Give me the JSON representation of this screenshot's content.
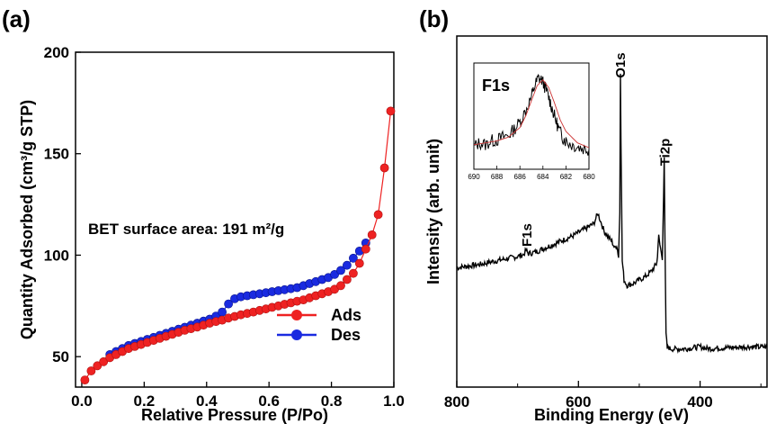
{
  "panels": {
    "a": {
      "label": "(a)"
    },
    "b": {
      "label": "(b)"
    }
  },
  "chart_data": [
    {
      "panel": "a",
      "type": "scatter",
      "xlabel": "Relative Pressure (P/Po)",
      "ylabel": "Quantity Adsorbed (cm³/g STP)",
      "xlim": [
        -0.02,
        1.0
      ],
      "ylim": [
        35,
        200
      ],
      "xticks": [
        0.0,
        0.2,
        0.4,
        0.6,
        0.8,
        1.0
      ],
      "xtick_labels": [
        "0.0",
        "0.2",
        "0.4",
        "0.6",
        "0.8",
        "1.0"
      ],
      "yticks": [
        50,
        100,
        150,
        200
      ],
      "ytick_labels": [
        "50",
        "100",
        "150",
        "200"
      ],
      "annotation": "BET surface area: 191 m²/g",
      "legend_position": "bottom-right",
      "series": [
        {
          "name": "Ads",
          "color": "#ee2222",
          "x": [
            0.01,
            0.03,
            0.05,
            0.07,
            0.09,
            0.11,
            0.13,
            0.15,
            0.17,
            0.19,
            0.21,
            0.23,
            0.25,
            0.27,
            0.29,
            0.31,
            0.33,
            0.35,
            0.37,
            0.39,
            0.41,
            0.43,
            0.45,
            0.47,
            0.49,
            0.51,
            0.53,
            0.55,
            0.57,
            0.59,
            0.61,
            0.63,
            0.65,
            0.67,
            0.69,
            0.71,
            0.73,
            0.75,
            0.77,
            0.79,
            0.81,
            0.83,
            0.85,
            0.87,
            0.89,
            0.91,
            0.93,
            0.95,
            0.97,
            0.99
          ],
          "y": [
            38.5,
            43.0,
            45.5,
            47.5,
            49.5,
            51.0,
            52.5,
            54.0,
            55.0,
            56.0,
            57.0,
            58.0,
            59.0,
            60.0,
            61.0,
            62.0,
            63.0,
            63.8,
            64.6,
            65.5,
            66.5,
            67.3,
            68.0,
            69.0,
            69.8,
            70.6,
            71.3,
            72.0,
            72.8,
            73.5,
            74.3,
            75.0,
            75.8,
            76.5,
            77.3,
            78.0,
            79.0,
            80.0,
            81.0,
            82.0,
            83.2,
            85.0,
            88.0,
            91.0,
            96.0,
            103.0,
            110.0,
            120.0,
            143.0,
            171.0
          ]
        },
        {
          "name": "Des",
          "color": "#1a2be0",
          "x": [
            0.09,
            0.11,
            0.13,
            0.15,
            0.17,
            0.19,
            0.21,
            0.23,
            0.25,
            0.27,
            0.29,
            0.31,
            0.33,
            0.35,
            0.37,
            0.39,
            0.41,
            0.43,
            0.45,
            0.47,
            0.49,
            0.51,
            0.53,
            0.55,
            0.57,
            0.59,
            0.61,
            0.63,
            0.65,
            0.67,
            0.69,
            0.71,
            0.73,
            0.75,
            0.77,
            0.79,
            0.81,
            0.83,
            0.85,
            0.87,
            0.89,
            0.91
          ],
          "y": [
            51.0,
            52.5,
            54.0,
            55.5,
            56.5,
            57.5,
            58.5,
            59.5,
            60.5,
            61.5,
            62.5,
            63.5,
            64.5,
            65.5,
            66.5,
            67.5,
            68.5,
            70.0,
            72.0,
            76.0,
            78.5,
            79.5,
            80.0,
            80.5,
            81.0,
            81.5,
            82.0,
            82.5,
            83.0,
            83.5,
            84.0,
            85.0,
            86.0,
            87.0,
            88.0,
            89.0,
            90.5,
            92.5,
            95.0,
            98.5,
            102.0,
            106.0
          ]
        }
      ]
    },
    {
      "panel": "b",
      "type": "line",
      "xlabel": "Binding Energy (eV)",
      "ylabel": "Intensity (arb. unit)",
      "xlim": [
        800,
        290
      ],
      "ylim": [
        0,
        100
      ],
      "xticks": [
        800,
        600,
        400
      ],
      "xtick_labels": [
        "800",
        "600",
        "400"
      ],
      "peak_labels": [
        {
          "text": "F1s",
          "x": 685,
          "y": 40
        },
        {
          "text": "O1s",
          "x": 531,
          "y": 88
        },
        {
          "text": "Ti2p",
          "x": 458,
          "y": 63
        }
      ],
      "spectrum": {
        "x": [
          800,
          780,
          760,
          740,
          720,
          700,
          690,
          686,
          684,
          682,
          670,
          650,
          630,
          610,
          590,
          575,
          568,
          563,
          558,
          550,
          545,
          540,
          537,
          534,
          532,
          531,
          530,
          528,
          525,
          520,
          510,
          500,
          490,
          480,
          472,
          470,
          468,
          466,
          464,
          462,
          460,
          459,
          458,
          456,
          454,
          452,
          450,
          440,
          420,
          400,
          390,
          380,
          360,
          340,
          320,
          300,
          290
        ],
        "y": [
          34,
          34.5,
          35,
          35.8,
          36.5,
          37.2,
          37.8,
          39.0,
          38.4,
          38.0,
          38.5,
          40,
          41.5,
          43,
          45,
          46.5,
          49.5,
          47.0,
          44.5,
          42.5,
          41.5,
          39.5,
          40.5,
          37.0,
          50.0,
          90.0,
          70.0,
          36.0,
          30.5,
          29.0,
          29.5,
          30.5,
          31.5,
          33.0,
          35.0,
          37.0,
          44.0,
          40.0,
          38.5,
          36.0,
          55.0,
          66.0,
          45.0,
          15.0,
          11.0,
          11.5,
          11.0,
          10.8,
          11.0,
          11.5,
          11.0,
          11.0,
          11.2,
          11.3,
          11.5,
          11.4,
          11.5
        ]
      },
      "inset": {
        "title": "F1s",
        "xlim": [
          690,
          680
        ],
        "ylim": [
          0,
          100
        ],
        "xticks": [
          690,
          688,
          686,
          684,
          682,
          680
        ],
        "xtick_labels": [
          "690",
          "688",
          "686",
          "684",
          "682",
          "680"
        ],
        "x": [
          690,
          689.5,
          689,
          688.5,
          688,
          687.5,
          687,
          686.5,
          686,
          685.5,
          685,
          684.7,
          684.4,
          684.1,
          683.8,
          683.5,
          683.2,
          682.9,
          682.6,
          682.3,
          682,
          681.5,
          681,
          680.5,
          680
        ],
        "y": [
          18,
          22,
          20,
          24,
          25,
          28,
          30,
          36,
          44,
          56,
          70,
          82,
          90,
          88,
          80,
          70,
          58,
          46,
          36,
          28,
          24,
          20,
          18,
          16,
          15
        ],
        "fit": {
          "color": "#cc3333",
          "x": [
            690,
            689,
            688,
            687,
            686,
            685.5,
            685,
            684.5,
            684,
            683.5,
            683,
            682.5,
            682,
            681,
            680
          ],
          "y": [
            20,
            22,
            24,
            28,
            38,
            50,
            66,
            82,
            88,
            80,
            64,
            46,
            34,
            22,
            17
          ]
        }
      }
    }
  ]
}
